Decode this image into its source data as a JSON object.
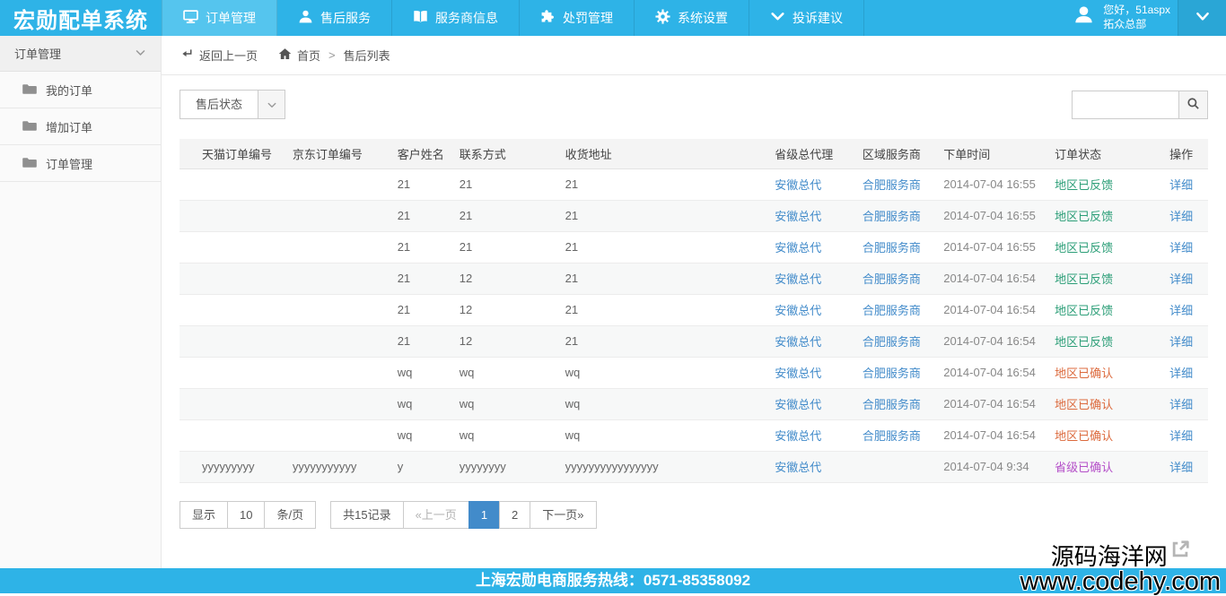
{
  "app": {
    "logo_text": "宏勋配单系统",
    "footer_text": "上海宏勋电商服务热线：0571-85358092"
  },
  "topnav": {
    "items": [
      {
        "label": "订单管理",
        "icon": "monitor-icon",
        "active": true
      },
      {
        "label": "售后服务",
        "icon": "user-icon",
        "active": false
      },
      {
        "label": "服务商信息",
        "icon": "book-icon",
        "active": false
      },
      {
        "label": "处罚管理",
        "icon": "puzzle-icon",
        "active": false
      },
      {
        "label": "系统设置",
        "icon": "gear-icon",
        "active": false
      },
      {
        "label": "投诉建议",
        "icon": "chevron-down-icon",
        "active": false
      }
    ],
    "user": {
      "greeting": "您好，51aspx",
      "org": "拓众总部"
    }
  },
  "sidebar": {
    "header": "订单管理",
    "items": [
      {
        "label": "我的订单"
      },
      {
        "label": "增加订单"
      },
      {
        "label": "订单管理"
      }
    ]
  },
  "breadcrumb": {
    "back": "返回上一页",
    "home": "首页",
    "separator": ">",
    "current": "售后列表"
  },
  "toolbar": {
    "filter_label": "售后状态",
    "search_value": ""
  },
  "table": {
    "columns": [
      "天猫订单编号",
      "京东订单编号",
      "客户姓名",
      "联系方式",
      "收货地址",
      "省级总代理",
      "区域服务商",
      "下单时间",
      "订单状态",
      "操作"
    ],
    "rows": [
      {
        "tmall": "",
        "jd": "",
        "customer": "21",
        "contact": "21",
        "address": "21",
        "agent": "安徽总代",
        "region": "合肥服务商",
        "time": "2014-07-04 16:55",
        "status": "地区已反馈",
        "status_color": "green",
        "action": "详细"
      },
      {
        "tmall": "",
        "jd": "",
        "customer": "21",
        "contact": "21",
        "address": "21",
        "agent": "安徽总代",
        "region": "合肥服务商",
        "time": "2014-07-04 16:55",
        "status": "地区已反馈",
        "status_color": "green",
        "action": "详细"
      },
      {
        "tmall": "",
        "jd": "",
        "customer": "21",
        "contact": "21",
        "address": "21",
        "agent": "安徽总代",
        "region": "合肥服务商",
        "time": "2014-07-04 16:55",
        "status": "地区已反馈",
        "status_color": "green",
        "action": "详细"
      },
      {
        "tmall": "",
        "jd": "",
        "customer": "21",
        "contact": "12",
        "address": "21",
        "agent": "安徽总代",
        "region": "合肥服务商",
        "time": "2014-07-04 16:54",
        "status": "地区已反馈",
        "status_color": "green",
        "action": "详细"
      },
      {
        "tmall": "",
        "jd": "",
        "customer": "21",
        "contact": "12",
        "address": "21",
        "agent": "安徽总代",
        "region": "合肥服务商",
        "time": "2014-07-04 16:54",
        "status": "地区已反馈",
        "status_color": "green",
        "action": "详细"
      },
      {
        "tmall": "",
        "jd": "",
        "customer": "21",
        "contact": "12",
        "address": "21",
        "agent": "安徽总代",
        "region": "合肥服务商",
        "time": "2014-07-04 16:54",
        "status": "地区已反馈",
        "status_color": "green",
        "action": "详细"
      },
      {
        "tmall": "",
        "jd": "",
        "customer": "wq",
        "contact": "wq",
        "address": "wq",
        "agent": "安徽总代",
        "region": "合肥服务商",
        "time": "2014-07-04 16:54",
        "status": "地区已确认",
        "status_color": "orange",
        "action": "详细"
      },
      {
        "tmall": "",
        "jd": "",
        "customer": "wq",
        "contact": "wq",
        "address": "wq",
        "agent": "安徽总代",
        "region": "合肥服务商",
        "time": "2014-07-04 16:54",
        "status": "地区已确认",
        "status_color": "orange",
        "action": "详细"
      },
      {
        "tmall": "",
        "jd": "",
        "customer": "wq",
        "contact": "wq",
        "address": "wq",
        "agent": "安徽总代",
        "region": "合肥服务商",
        "time": "2014-07-04 16:54",
        "status": "地区已确认",
        "status_color": "orange",
        "action": "详细"
      },
      {
        "tmall": "yyyyyyyyy",
        "jd": "yyyyyyyyyyy",
        "customer": "y",
        "contact": "yyyyyyyy",
        "address": "yyyyyyyyyyyyyyyy",
        "agent": "安徽总代",
        "region": "",
        "time": "2014-07-04 9:34",
        "status": "省级已确认",
        "status_color": "purple",
        "action": "详细"
      }
    ]
  },
  "pagination": {
    "show_label": "显示",
    "page_size": "10",
    "per_page_label": "条/页",
    "total_label": "共15记录",
    "prev_label": "«上一页",
    "pages": [
      "1",
      "2"
    ],
    "active_page": "1",
    "next_label": "下一页»"
  },
  "watermark": {
    "line1": "源码海洋网",
    "line2": "www.codehy.com"
  },
  "colors": {
    "header_blue": "#2eb3e7",
    "active_tab_blue": "#55c5ee",
    "footer_blue": "#2eb3e7",
    "link_blue": "#428bca",
    "pagination_active_blue": "#428bca",
    "status_feedback_green": "#2b9e77",
    "status_region_confirmed_orange": "#dc6a3d",
    "status_provincial_confirmed_purple": "#b44fc8"
  }
}
